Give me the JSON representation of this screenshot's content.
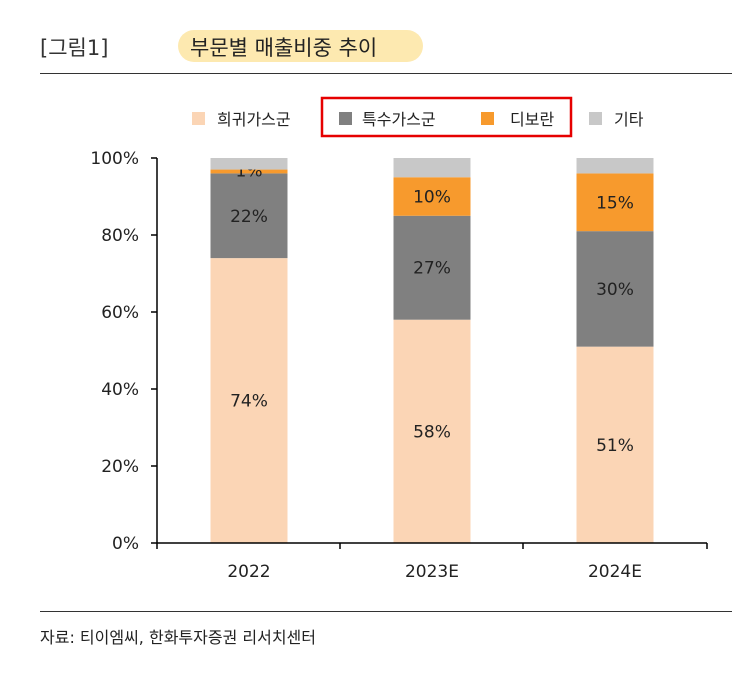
{
  "header": {
    "figure_number": "[그림1]",
    "title": "부문별 매출비중 추이"
  },
  "footer": {
    "source": "자료: 티이엠씨, 한화투자증권 리서치센터"
  },
  "colors": {
    "title_highlight": "#fde9b0",
    "legend_highlight_box": "#e60000"
  },
  "chart_data": {
    "type": "bar",
    "stacked": true,
    "title": "부문별 매출비중 추이",
    "categories": [
      "2022",
      "2023E",
      "2024E"
    ],
    "series": [
      {
        "name": "희귀가스군",
        "color": "#fbd5b5",
        "values": [
          74,
          58,
          51
        ],
        "labels": [
          "74%",
          "58%",
          "51%"
        ]
      },
      {
        "name": "특수가스군",
        "color": "#808080",
        "values": [
          22,
          27,
          30
        ],
        "labels": [
          "22%",
          "27%",
          "30%"
        ]
      },
      {
        "name": "디보란",
        "color": "#f79a2d",
        "values": [
          1,
          10,
          15
        ],
        "labels": [
          "1%",
          "10%",
          "15%"
        ]
      },
      {
        "name": "기타",
        "color": "#c8c8c8",
        "values": [
          3,
          5,
          4
        ],
        "labels": [
          "",
          "",
          ""
        ]
      }
    ],
    "ylim": [
      0,
      100
    ],
    "yticks": [
      "0%",
      "20%",
      "40%",
      "60%",
      "80%",
      "100%"
    ],
    "grid": false,
    "legend_position": "top",
    "legend_highlighted": [
      "특수가스군",
      "디보란"
    ]
  }
}
